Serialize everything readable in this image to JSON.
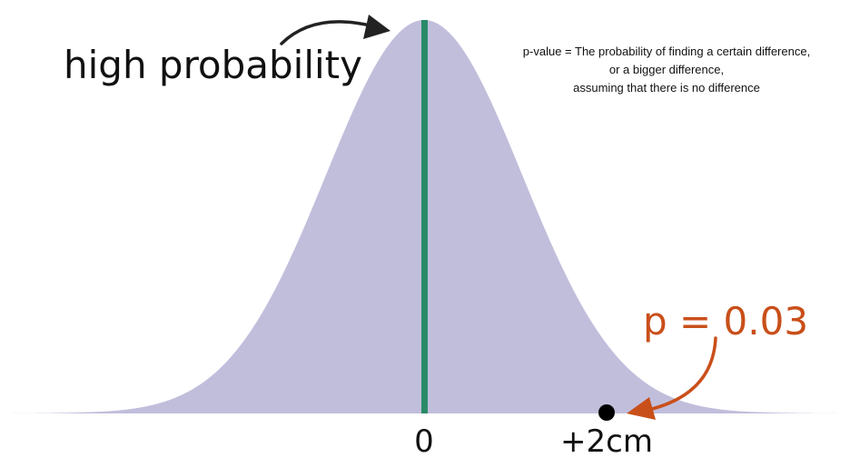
{
  "annotations": {
    "high_label": "high probability",
    "definition": [
      "p-value = The probability of finding a certain difference,",
      "or a bigger difference,",
      "assuming that there is no difference"
    ],
    "p_label": "p = 0.03"
  },
  "axis": {
    "zero_label": "0",
    "observed_label": "+2cm"
  },
  "colors": {
    "curve_fill": "#c1bedc",
    "mean_line": "#2a8a68",
    "p_label": "#c94f1a",
    "arrow_high": "#222222",
    "arrow_p": "#c94f1a",
    "point": "#000000"
  }
}
